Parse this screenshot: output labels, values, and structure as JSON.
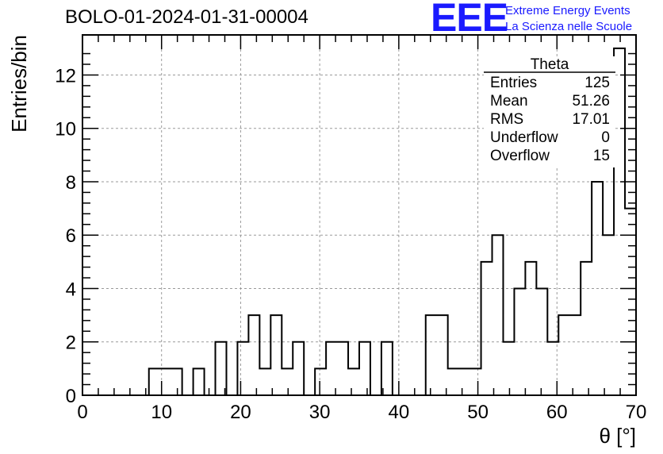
{
  "header": {
    "run_title": "BOLO-01-2024-01-31-00004",
    "logo_mark": "EEE",
    "logo_line1": "Extreme Energy Events",
    "logo_line2": "La Scienza nelle Scuole"
  },
  "stats_box": {
    "title": "Theta",
    "rows": [
      {
        "label": "Entries",
        "value": "125"
      },
      {
        "label": "Mean",
        "value": "51.26"
      },
      {
        "label": "RMS",
        "value": "17.01"
      },
      {
        "label": "Underflow",
        "value": "0"
      },
      {
        "label": "Overflow",
        "value": "15"
      }
    ]
  },
  "chart_data": {
    "type": "histogram",
    "xlabel": "θ [°]",
    "ylabel": "Entries/bin",
    "xlim": [
      0,
      70
    ],
    "ylim": [
      0,
      13.5
    ],
    "x_ticks": [
      "0",
      "10",
      "20",
      "30",
      "40",
      "50",
      "60",
      "70"
    ],
    "y_ticks": [
      "0",
      "2",
      "4",
      "6",
      "8",
      "10",
      "12"
    ],
    "grid": true,
    "bin_width": 1.4,
    "bin_edges_start": 0,
    "values": [
      0,
      0,
      0,
      0,
      0,
      0,
      1,
      1,
      1,
      0,
      1,
      0,
      2,
      0,
      2,
      3,
      1,
      3,
      1,
      2,
      0,
      1,
      2,
      2,
      1,
      2,
      0,
      2,
      0,
      0,
      0,
      3,
      3,
      1,
      1,
      1,
      5,
      6,
      2,
      4,
      5,
      4,
      2,
      3,
      3,
      5,
      8,
      6,
      13,
      7
    ]
  },
  "colors": {
    "line": "#000000",
    "grid": "#9a9a9a",
    "logo": "#1a1aff"
  }
}
